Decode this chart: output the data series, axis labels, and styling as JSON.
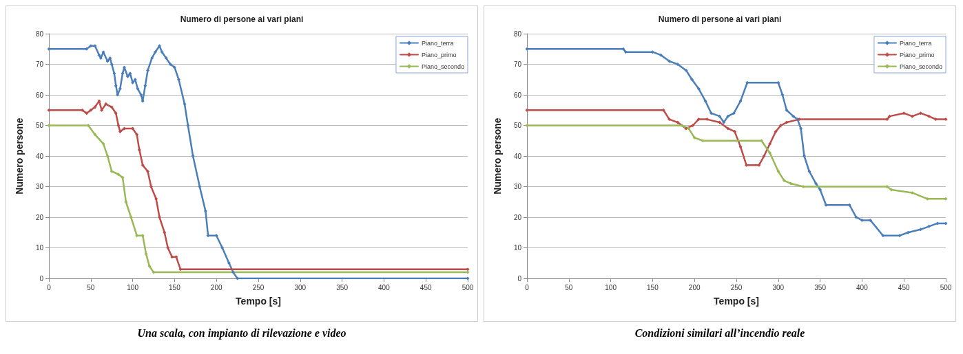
{
  "chart_data": [
    {
      "type": "line",
      "title": "Numero di persone ai vari piani",
      "xlabel": "Tempo [s]",
      "ylabel": "Numero persone",
      "annotations": [
        "Una scala, con impianto di rilevazione e video"
      ],
      "xlim": [
        0,
        500
      ],
      "xticks": [
        0,
        50,
        100,
        150,
        200,
        250,
        300,
        350,
        400,
        450,
        500
      ],
      "ylim": [
        0,
        80
      ],
      "yticks": [
        0,
        10,
        20,
        30,
        40,
        50,
        60,
        70,
        80
      ],
      "grid": "y",
      "legend": "top right",
      "marker": "diamond",
      "line_style": "solid",
      "series": [
        {
          "name": "Piano_terra",
          "color": "#4a7ebb",
          "x": [
            0,
            45,
            50,
            55,
            60,
            62,
            65,
            70,
            73,
            75,
            78,
            80,
            82,
            85,
            88,
            90,
            94,
            97,
            100,
            103,
            106,
            110,
            112,
            115,
            118,
            123,
            127,
            132,
            135,
            140,
            145,
            150,
            155,
            162,
            166,
            172,
            180,
            187,
            190,
            200,
            207,
            215,
            220,
            225,
            500
          ],
          "values": [
            75,
            75,
            76,
            76,
            73,
            72,
            74,
            71,
            72,
            70,
            67,
            63,
            60,
            62,
            67,
            69,
            66,
            67,
            64,
            65,
            62,
            60,
            58,
            63,
            68,
            72,
            74,
            76,
            74,
            72,
            70,
            69,
            65,
            57,
            50,
            40,
            30,
            22,
            14,
            14,
            10,
            5,
            2,
            0,
            0
          ]
        },
        {
          "name": "Piano_primo",
          "color": "#be4b48",
          "x": [
            0,
            40,
            45,
            50,
            55,
            60,
            63,
            68,
            75,
            80,
            83,
            85,
            90,
            100,
            105,
            108,
            112,
            118,
            122,
            128,
            132,
            138,
            142,
            147,
            152,
            157,
            500
          ],
          "values": [
            55,
            55,
            54,
            55,
            56,
            58,
            55,
            57,
            56,
            54,
            50,
            48,
            49,
            49,
            47,
            42,
            37,
            35,
            30,
            26,
            20,
            15,
            10,
            7,
            7,
            3,
            3
          ]
        },
        {
          "name": "Piano_secondo",
          "color": "#98b954",
          "x": [
            0,
            47,
            55,
            65,
            70,
            75,
            83,
            88,
            92,
            98,
            105,
            112,
            116,
            120,
            125,
            500
          ],
          "values": [
            50,
            50,
            47,
            44,
            40,
            35,
            34,
            33,
            25,
            20,
            14,
            14,
            8,
            4,
            2,
            2
          ]
        }
      ]
    },
    {
      "type": "line",
      "title": "Numero di persone ai vari piani",
      "xlabel": "Tempo [s]",
      "ylabel": "Numero persone",
      "annotations": [
        "Condizioni similari all’incendio reale"
      ],
      "xlim": [
        0,
        500
      ],
      "xticks": [
        0,
        50,
        100,
        150,
        200,
        250,
        300,
        350,
        400,
        450,
        500
      ],
      "ylim": [
        0,
        80
      ],
      "yticks": [
        0,
        10,
        20,
        30,
        40,
        50,
        60,
        70,
        80
      ],
      "grid": "y",
      "legend": "top right",
      "marker": "diamond",
      "line_style": "solid",
      "series": [
        {
          "name": "Piano_terra",
          "color": "#4a7ebb",
          "x": [
            0,
            115,
            118,
            150,
            160,
            170,
            180,
            190,
            197,
            205,
            213,
            220,
            230,
            235,
            240,
            247,
            255,
            263,
            300,
            305,
            310,
            318,
            323,
            327,
            331,
            337,
            345,
            350,
            357,
            385,
            393,
            400,
            410,
            425,
            445,
            455,
            470,
            480,
            490,
            500
          ],
          "values": [
            75,
            75,
            74,
            74,
            73,
            71,
            70,
            68,
            65,
            62,
            58,
            54,
            53,
            51,
            53,
            54,
            58,
            64,
            64,
            60,
            55,
            53,
            52,
            49,
            40,
            35,
            31,
            29,
            24,
            24,
            20,
            19,
            19,
            14,
            14,
            15,
            16,
            17,
            18,
            18
          ]
        },
        {
          "name": "Piano_primo",
          "color": "#be4b48",
          "x": [
            0,
            163,
            170,
            180,
            190,
            198,
            205,
            215,
            230,
            240,
            248,
            255,
            262,
            277,
            283,
            290,
            297,
            303,
            310,
            325,
            430,
            433,
            450,
            460,
            470,
            480,
            488,
            500
          ],
          "values": [
            55,
            55,
            52,
            51,
            49,
            50,
            52,
            52,
            51,
            49,
            48,
            43,
            37,
            37,
            40,
            44,
            48,
            50,
            51,
            52,
            52,
            53,
            54,
            53,
            54,
            53,
            52,
            52
          ]
        },
        {
          "name": "Piano_secondo",
          "color": "#98b954",
          "x": [
            0,
            185,
            193,
            200,
            210,
            280,
            290,
            300,
            307,
            315,
            330,
            430,
            435,
            460,
            478,
            500
          ],
          "values": [
            50,
            50,
            49,
            46,
            45,
            45,
            41,
            35,
            32,
            31,
            30,
            30,
            29,
            28,
            26,
            26
          ]
        }
      ]
    }
  ]
}
